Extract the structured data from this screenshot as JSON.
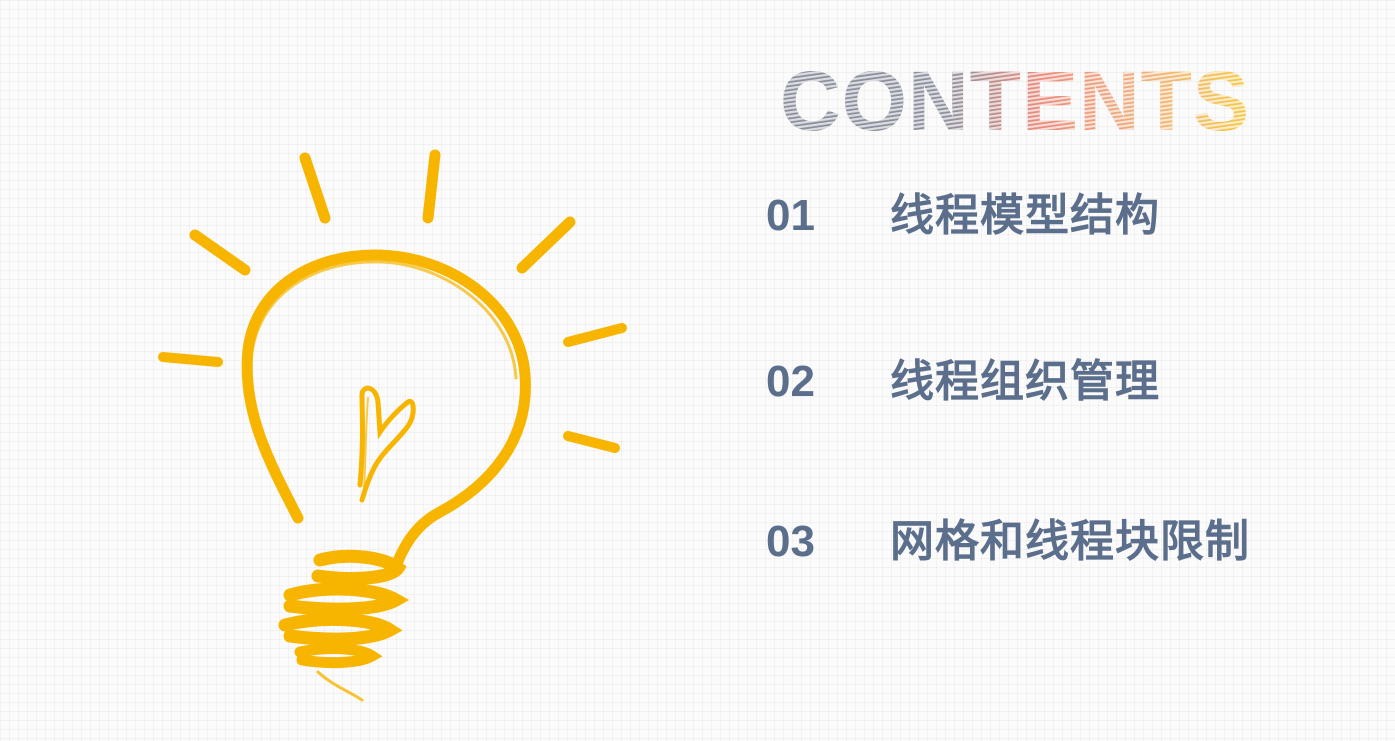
{
  "title": "CONTENTS",
  "colors": {
    "accent": "#f7b500",
    "text": "#5b6f8c",
    "title_gray": "#8a8f9c",
    "title_red": "#e88a7d",
    "title_yellow": "#f5c842"
  },
  "icons": [
    "lightbulb-icon"
  ],
  "items": [
    {
      "num": "01",
      "label": "线程模型结构"
    },
    {
      "num": "02",
      "label": "线程组织管理"
    },
    {
      "num": "03",
      "label": "网格和线程块限制"
    }
  ]
}
